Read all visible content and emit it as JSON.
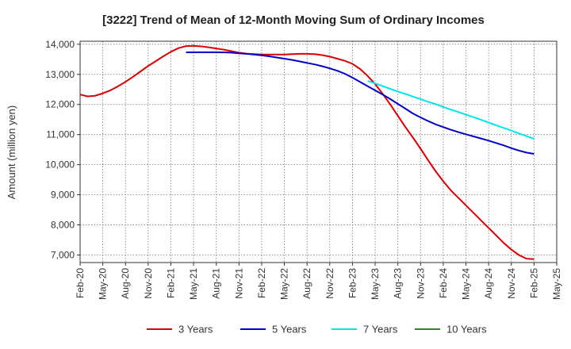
{
  "chart_data": {
    "type": "line",
    "title": "[3222]  Trend of Mean of 12-Month Moving Sum of Ordinary Incomes",
    "xlabel": "",
    "ylabel": "Amount (million yen)",
    "ylim": [
      6750,
      14100
    ],
    "yticks": [
      7000,
      8000,
      9000,
      10000,
      11000,
      12000,
      13000,
      14000
    ],
    "ytick_labels": [
      "7,000",
      "8,000",
      "9,000",
      "10,000",
      "11,000",
      "12,000",
      "13,000",
      "14,000"
    ],
    "xtick_labels": [
      "Feb-20",
      "May-20",
      "Aug-20",
      "Nov-20",
      "Feb-21",
      "May-21",
      "Aug-21",
      "Nov-21",
      "Feb-22",
      "May-22",
      "Aug-22",
      "Nov-22",
      "Feb-23",
      "May-23",
      "Aug-23",
      "Nov-23",
      "Feb-24",
      "May-24",
      "Aug-24",
      "Nov-24",
      "Feb-25",
      "May-25"
    ],
    "x_unit": "months since Feb-20",
    "grid": true,
    "legend_position": "bottom",
    "series": [
      {
        "name": "3 Years",
        "color": "#dd0000",
        "x": [
          0,
          1,
          2,
          3,
          4,
          5,
          6,
          7,
          8,
          9,
          10,
          11,
          12,
          13,
          14,
          15,
          16,
          17,
          18,
          19,
          20,
          21,
          22,
          23,
          24,
          25,
          26,
          27,
          28,
          29,
          30,
          31,
          32,
          33,
          34,
          35,
          36,
          37,
          38,
          39,
          40,
          41,
          42,
          43,
          44,
          45,
          46,
          47,
          48,
          49,
          50,
          51,
          52,
          53,
          54,
          55,
          56,
          57,
          58,
          59,
          60
        ],
        "values": [
          12330,
          12270,
          12290,
          12370,
          12470,
          12600,
          12750,
          12920,
          13100,
          13280,
          13440,
          13600,
          13750,
          13870,
          13940,
          13950,
          13930,
          13900,
          13860,
          13820,
          13770,
          13720,
          13690,
          13670,
          13660,
          13660,
          13660,
          13660,
          13670,
          13680,
          13680,
          13670,
          13640,
          13590,
          13520,
          13450,
          13350,
          13180,
          12950,
          12680,
          12350,
          12000,
          11620,
          11250,
          10900,
          10530,
          10150,
          9780,
          9450,
          9150,
          8900,
          8650,
          8400,
          8150,
          7900,
          7650,
          7400,
          7180,
          7000,
          6880,
          6860
        ]
      },
      {
        "name": "5 Years",
        "color": "#0000cc",
        "x": [
          14,
          15,
          16,
          17,
          18,
          19,
          20,
          21,
          22,
          23,
          24,
          25,
          26,
          27,
          28,
          29,
          30,
          31,
          32,
          33,
          34,
          35,
          36,
          37,
          38,
          39,
          40,
          41,
          42,
          43,
          44,
          45,
          46,
          47,
          48,
          49,
          50,
          51,
          52,
          53,
          54,
          55,
          56,
          57,
          58,
          59,
          60
        ],
        "values": [
          13730,
          13735,
          13735,
          13735,
          13735,
          13730,
          13720,
          13700,
          13680,
          13660,
          13630,
          13600,
          13560,
          13520,
          13480,
          13430,
          13380,
          13330,
          13270,
          13200,
          13120,
          13020,
          12890,
          12750,
          12610,
          12470,
          12330,
          12180,
          12020,
          11860,
          11700,
          11570,
          11450,
          11340,
          11250,
          11160,
          11080,
          11010,
          10940,
          10870,
          10800,
          10720,
          10640,
          10550,
          10470,
          10400,
          10360
        ]
      },
      {
        "name": "7 Years",
        "color": "#00e5ee",
        "x": [
          38,
          39,
          40,
          41,
          42,
          43,
          44,
          45,
          46,
          47,
          48,
          49,
          50,
          51,
          52,
          53,
          54,
          55,
          56,
          57,
          58,
          59,
          60
        ],
        "values": [
          12780,
          12700,
          12610,
          12520,
          12430,
          12350,
          12260,
          12180,
          12090,
          12010,
          11920,
          11830,
          11750,
          11660,
          11580,
          11490,
          11400,
          11310,
          11220,
          11130,
          11040,
          10950,
          10860
        ]
      },
      {
        "name": "10 Years",
        "color": "#228b22",
        "x": [],
        "values": []
      }
    ]
  }
}
